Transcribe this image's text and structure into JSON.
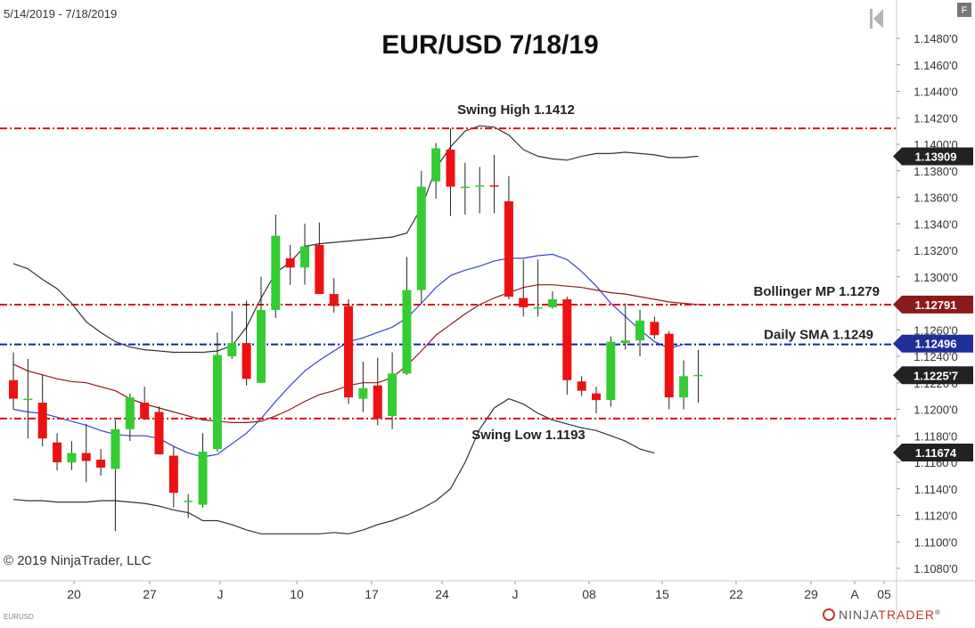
{
  "header": {
    "date_range": "5/14/2019 - 7/18/2019",
    "f_button": "F"
  },
  "footer": {
    "copyright": "© 2019 NinjaTrader, LLC",
    "symbol": "EURUSD",
    "brand_1": "NINJA",
    "brand_2": "TRADER",
    "brand_reg": "®"
  },
  "chart_data": {
    "type": "candlestick",
    "title": "EUR/USD 7/18/19",
    "ylim": [
      1.1072,
      1.1508
    ],
    "y_ticks": [
      "1.1480'0",
      "1.1460'0",
      "1.1440'0",
      "1.1420'0",
      "1.1400'0",
      "1.1380'0",
      "1.1360'0",
      "1.1340'0",
      "1.1320'0",
      "1.1300'0",
      "1.1280'0",
      "1.1260'0",
      "1.1240'0",
      "1.1220'0",
      "1.1200'0",
      "1.1180'0",
      "1.1160'0",
      "1.1140'0",
      "1.1120'0",
      "1.1100'0",
      "1.1080'0"
    ],
    "x_ticks": [
      "20",
      "27",
      "J",
      "10",
      "17",
      "24",
      "J",
      "08",
      "15",
      "22",
      "29",
      "A",
      "05"
    ],
    "candles": [
      {
        "o": 1.1222,
        "h": 1.1243,
        "l": 1.12,
        "c": 1.1208
      },
      {
        "o": 1.1208,
        "h": 1.1238,
        "l": 1.1178,
        "c": 1.1208
      },
      {
        "o": 1.1205,
        "h": 1.1226,
        "l": 1.1172,
        "c": 1.1178
      },
      {
        "o": 1.1175,
        "h": 1.1182,
        "l": 1.1154,
        "c": 1.116
      },
      {
        "o": 1.116,
        "h": 1.1176,
        "l": 1.1154,
        "c": 1.1167
      },
      {
        "o": 1.1167,
        "h": 1.1189,
        "l": 1.1145,
        "c": 1.1161
      },
      {
        "o": 1.1162,
        "h": 1.117,
        "l": 1.115,
        "c": 1.1156
      },
      {
        "o": 1.1155,
        "h": 1.1192,
        "l": 1.1108,
        "c": 1.1185
      },
      {
        "o": 1.1185,
        "h": 1.1212,
        "l": 1.1176,
        "c": 1.1209
      },
      {
        "o": 1.1205,
        "h": 1.1217,
        "l": 1.1192,
        "c": 1.1193
      },
      {
        "o": 1.1198,
        "h": 1.1202,
        "l": 1.1166,
        "c": 1.1166
      },
      {
        "o": 1.1165,
        "h": 1.1172,
        "l": 1.1126,
        "c": 1.1137
      },
      {
        "o": 1.1131,
        "h": 1.1136,
        "l": 1.1118,
        "c": 1.1131
      },
      {
        "o": 1.1128,
        "h": 1.1182,
        "l": 1.1126,
        "c": 1.1168
      },
      {
        "o": 1.117,
        "h": 1.1258,
        "l": 1.1168,
        "c": 1.1241
      },
      {
        "o": 1.124,
        "h": 1.1274,
        "l": 1.1238,
        "c": 1.125
      },
      {
        "o": 1.125,
        "h": 1.1282,
        "l": 1.1218,
        "c": 1.1223
      },
      {
        "o": 1.122,
        "h": 1.13,
        "l": 1.122,
        "c": 1.1275
      },
      {
        "o": 1.1275,
        "h": 1.1347,
        "l": 1.1269,
        "c": 1.1331
      },
      {
        "o": 1.1314,
        "h": 1.1324,
        "l": 1.1294,
        "c": 1.1307
      },
      {
        "o": 1.1307,
        "h": 1.134,
        "l": 1.1294,
        "c": 1.1323
      },
      {
        "o": 1.1324,
        "h": 1.1341,
        "l": 1.1287,
        "c": 1.1287
      },
      {
        "o": 1.1287,
        "h": 1.1299,
        "l": 1.1273,
        "c": 1.1278
      },
      {
        "o": 1.1278,
        "h": 1.1283,
        "l": 1.1204,
        "c": 1.1209
      },
      {
        "o": 1.1208,
        "h": 1.1236,
        "l": 1.1198,
        "c": 1.1216
      },
      {
        "o": 1.1218,
        "h": 1.1239,
        "l": 1.1188,
        "c": 1.1193
      },
      {
        "o": 1.1195,
        "h": 1.1243,
        "l": 1.1185,
        "c": 1.1227
      },
      {
        "o": 1.1227,
        "h": 1.1315,
        "l": 1.1226,
        "c": 1.129
      },
      {
        "o": 1.129,
        "h": 1.138,
        "l": 1.128,
        "c": 1.1368
      },
      {
        "o": 1.1372,
        "h": 1.1401,
        "l": 1.1359,
        "c": 1.1397
      },
      {
        "o": 1.1396,
        "h": 1.1412,
        "l": 1.1346,
        "c": 1.1368
      },
      {
        "o": 1.1368,
        "h": 1.1386,
        "l": 1.1347,
        "c": 1.1368
      },
      {
        "o": 1.1369,
        "h": 1.1383,
        "l": 1.1348,
        "c": 1.1369
      },
      {
        "o": 1.1369,
        "h": 1.1392,
        "l": 1.1348,
        "c": 1.1368
      },
      {
        "o": 1.1357,
        "h": 1.1376,
        "l": 1.1283,
        "c": 1.1285
      },
      {
        "o": 1.1284,
        "h": 1.1313,
        "l": 1.127,
        "c": 1.1277
      },
      {
        "o": 1.1277,
        "h": 1.1313,
        "l": 1.127,
        "c": 1.1277
      },
      {
        "o": 1.1277,
        "h": 1.1289,
        "l": 1.1276,
        "c": 1.1283
      },
      {
        "o": 1.1283,
        "h": 1.1285,
        "l": 1.1211,
        "c": 1.1222
      },
      {
        "o": 1.1221,
        "h": 1.1225,
        "l": 1.121,
        "c": 1.1214
      },
      {
        "o": 1.1212,
        "h": 1.1217,
        "l": 1.1197,
        "c": 1.1207
      },
      {
        "o": 1.1207,
        "h": 1.1255,
        "l": 1.1202,
        "c": 1.1251
      },
      {
        "o": 1.125,
        "h": 1.128,
        "l": 1.1245,
        "c": 1.1252
      },
      {
        "o": 1.1252,
        "h": 1.1275,
        "l": 1.124,
        "c": 1.1267
      },
      {
        "o": 1.1266,
        "h": 1.127,
        "l": 1.1253,
        "c": 1.1256
      },
      {
        "o": 1.1257,
        "h": 1.1259,
        "l": 1.12,
        "c": 1.1209
      },
      {
        "o": 1.1209,
        "h": 1.1237,
        "l": 1.12,
        "c": 1.1225
      },
      {
        "o": 1.1225,
        "h": 1.1245,
        "l": 1.1205,
        "c": 1.1226
      }
    ],
    "series": [
      {
        "name": "",
        "color": "#3344cc",
        "values": [
          1.12,
          1.1198,
          1.1197,
          1.1194,
          1.1191,
          1.1188,
          1.1184,
          1.1181,
          1.118,
          1.118,
          1.1178,
          1.1172,
          1.1167,
          1.1164,
          1.1166,
          1.1174,
          1.1182,
          1.1193,
          1.1206,
          1.1218,
          1.1229,
          1.1237,
          1.1244,
          1.1251,
          1.1254,
          1.1258,
          1.1262,
          1.1269,
          1.128,
          1.1292,
          1.1301,
          1.1305,
          1.1308,
          1.1312,
          1.1314,
          1.1314,
          1.1316,
          1.1317,
          1.1313,
          1.1304,
          1.1293,
          1.128,
          1.127,
          1.126,
          1.1251,
          1.1246,
          1.1249,
          null
        ]
      },
      {
        "name": "",
        "color": "#8b1a1a",
        "values": [
          1.1234,
          1.1229,
          1.1226,
          1.1223,
          1.1221,
          1.122,
          1.1217,
          1.1214,
          1.1208,
          1.1204,
          1.1201,
          1.1198,
          1.1195,
          1.1192,
          1.1191,
          1.119,
          1.119,
          1.1191,
          1.1195,
          1.12,
          1.1206,
          1.1211,
          1.1214,
          1.1218,
          1.122,
          1.122,
          1.1224,
          1.1233,
          1.1244,
          1.1256,
          1.1264,
          1.1272,
          1.1279,
          1.1284,
          1.1288,
          1.1292,
          1.1294,
          1.1294,
          1.1293,
          1.1292,
          1.129,
          1.1288,
          1.1287,
          1.1285,
          1.1283,
          1.1281,
          1.128,
          1.1279
        ]
      },
      {
        "name": "",
        "color": "#333333",
        "values": [
          1.131,
          1.1306,
          1.1298,
          1.1291,
          1.128,
          1.1266,
          1.1258,
          1.1251,
          1.1247,
          1.1245,
          1.1244,
          1.1243,
          1.1243,
          1.1243,
          1.1244,
          1.1248,
          1.1262,
          1.1284,
          1.1303,
          1.1311,
          1.1323,
          1.1325,
          1.1326,
          1.1327,
          1.1328,
          1.1329,
          1.133,
          1.1333,
          1.1352,
          1.1382,
          1.1398,
          1.141,
          1.1414,
          1.1413,
          1.1407,
          1.1396,
          1.1391,
          1.1389,
          1.1388,
          1.1391,
          1.1393,
          1.1393,
          1.1394,
          1.1393,
          1.1392,
          1.139,
          1.139,
          1.1391
        ]
      },
      {
        "name": "",
        "color": "#333333",
        "values": [
          1.1132,
          1.1131,
          1.1131,
          1.113,
          1.113,
          1.113,
          1.1131,
          1.1131,
          1.113,
          1.1129,
          1.1127,
          1.1124,
          1.1122,
          1.1116,
          1.1116,
          1.1113,
          1.1109,
          1.1106,
          1.1106,
          1.1106,
          1.1106,
          1.1106,
          1.1107,
          1.1106,
          1.1109,
          1.1113,
          1.1116,
          1.112,
          1.1125,
          1.1131,
          1.114,
          1.116,
          1.1185,
          1.1201,
          1.1208,
          1.1204,
          1.1197,
          1.1192,
          1.1189,
          1.1186,
          1.1184,
          1.118,
          1.1176,
          1.117,
          1.1167,
          null,
          null,
          null
        ]
      }
    ],
    "levels": [
      {
        "label": "Swing High 1.1412",
        "value": 1.1412,
        "color": "#dd1111"
      },
      {
        "label": "Bollinger MP 1.1279",
        "value": 1.1279,
        "color": "#dd1111"
      },
      {
        "label": "Daily SMA 1.1249",
        "value": 1.1249,
        "color": "#1122aa"
      },
      {
        "label": "Swing Low 1.1193",
        "value": 1.1193,
        "color": "#dd1111"
      }
    ],
    "price_badges": [
      {
        "label": "1.13909",
        "value": 1.13909,
        "bg": "#222222",
        "fg": "#ffffff"
      },
      {
        "label": "1.12791",
        "value": 1.12791,
        "bg": "#8b1a1a",
        "fg": "#ffffff"
      },
      {
        "label": "1.12496",
        "value": 1.12496,
        "bg": "#1f2f99",
        "fg": "#ffffff"
      },
      {
        "label": "1.1225'7",
        "value": 1.12257,
        "bg": "#222222",
        "fg": "#ffffff"
      },
      {
        "label": "1.11674",
        "value": 1.11674,
        "bg": "#222222",
        "fg": "#ffffff"
      }
    ]
  }
}
